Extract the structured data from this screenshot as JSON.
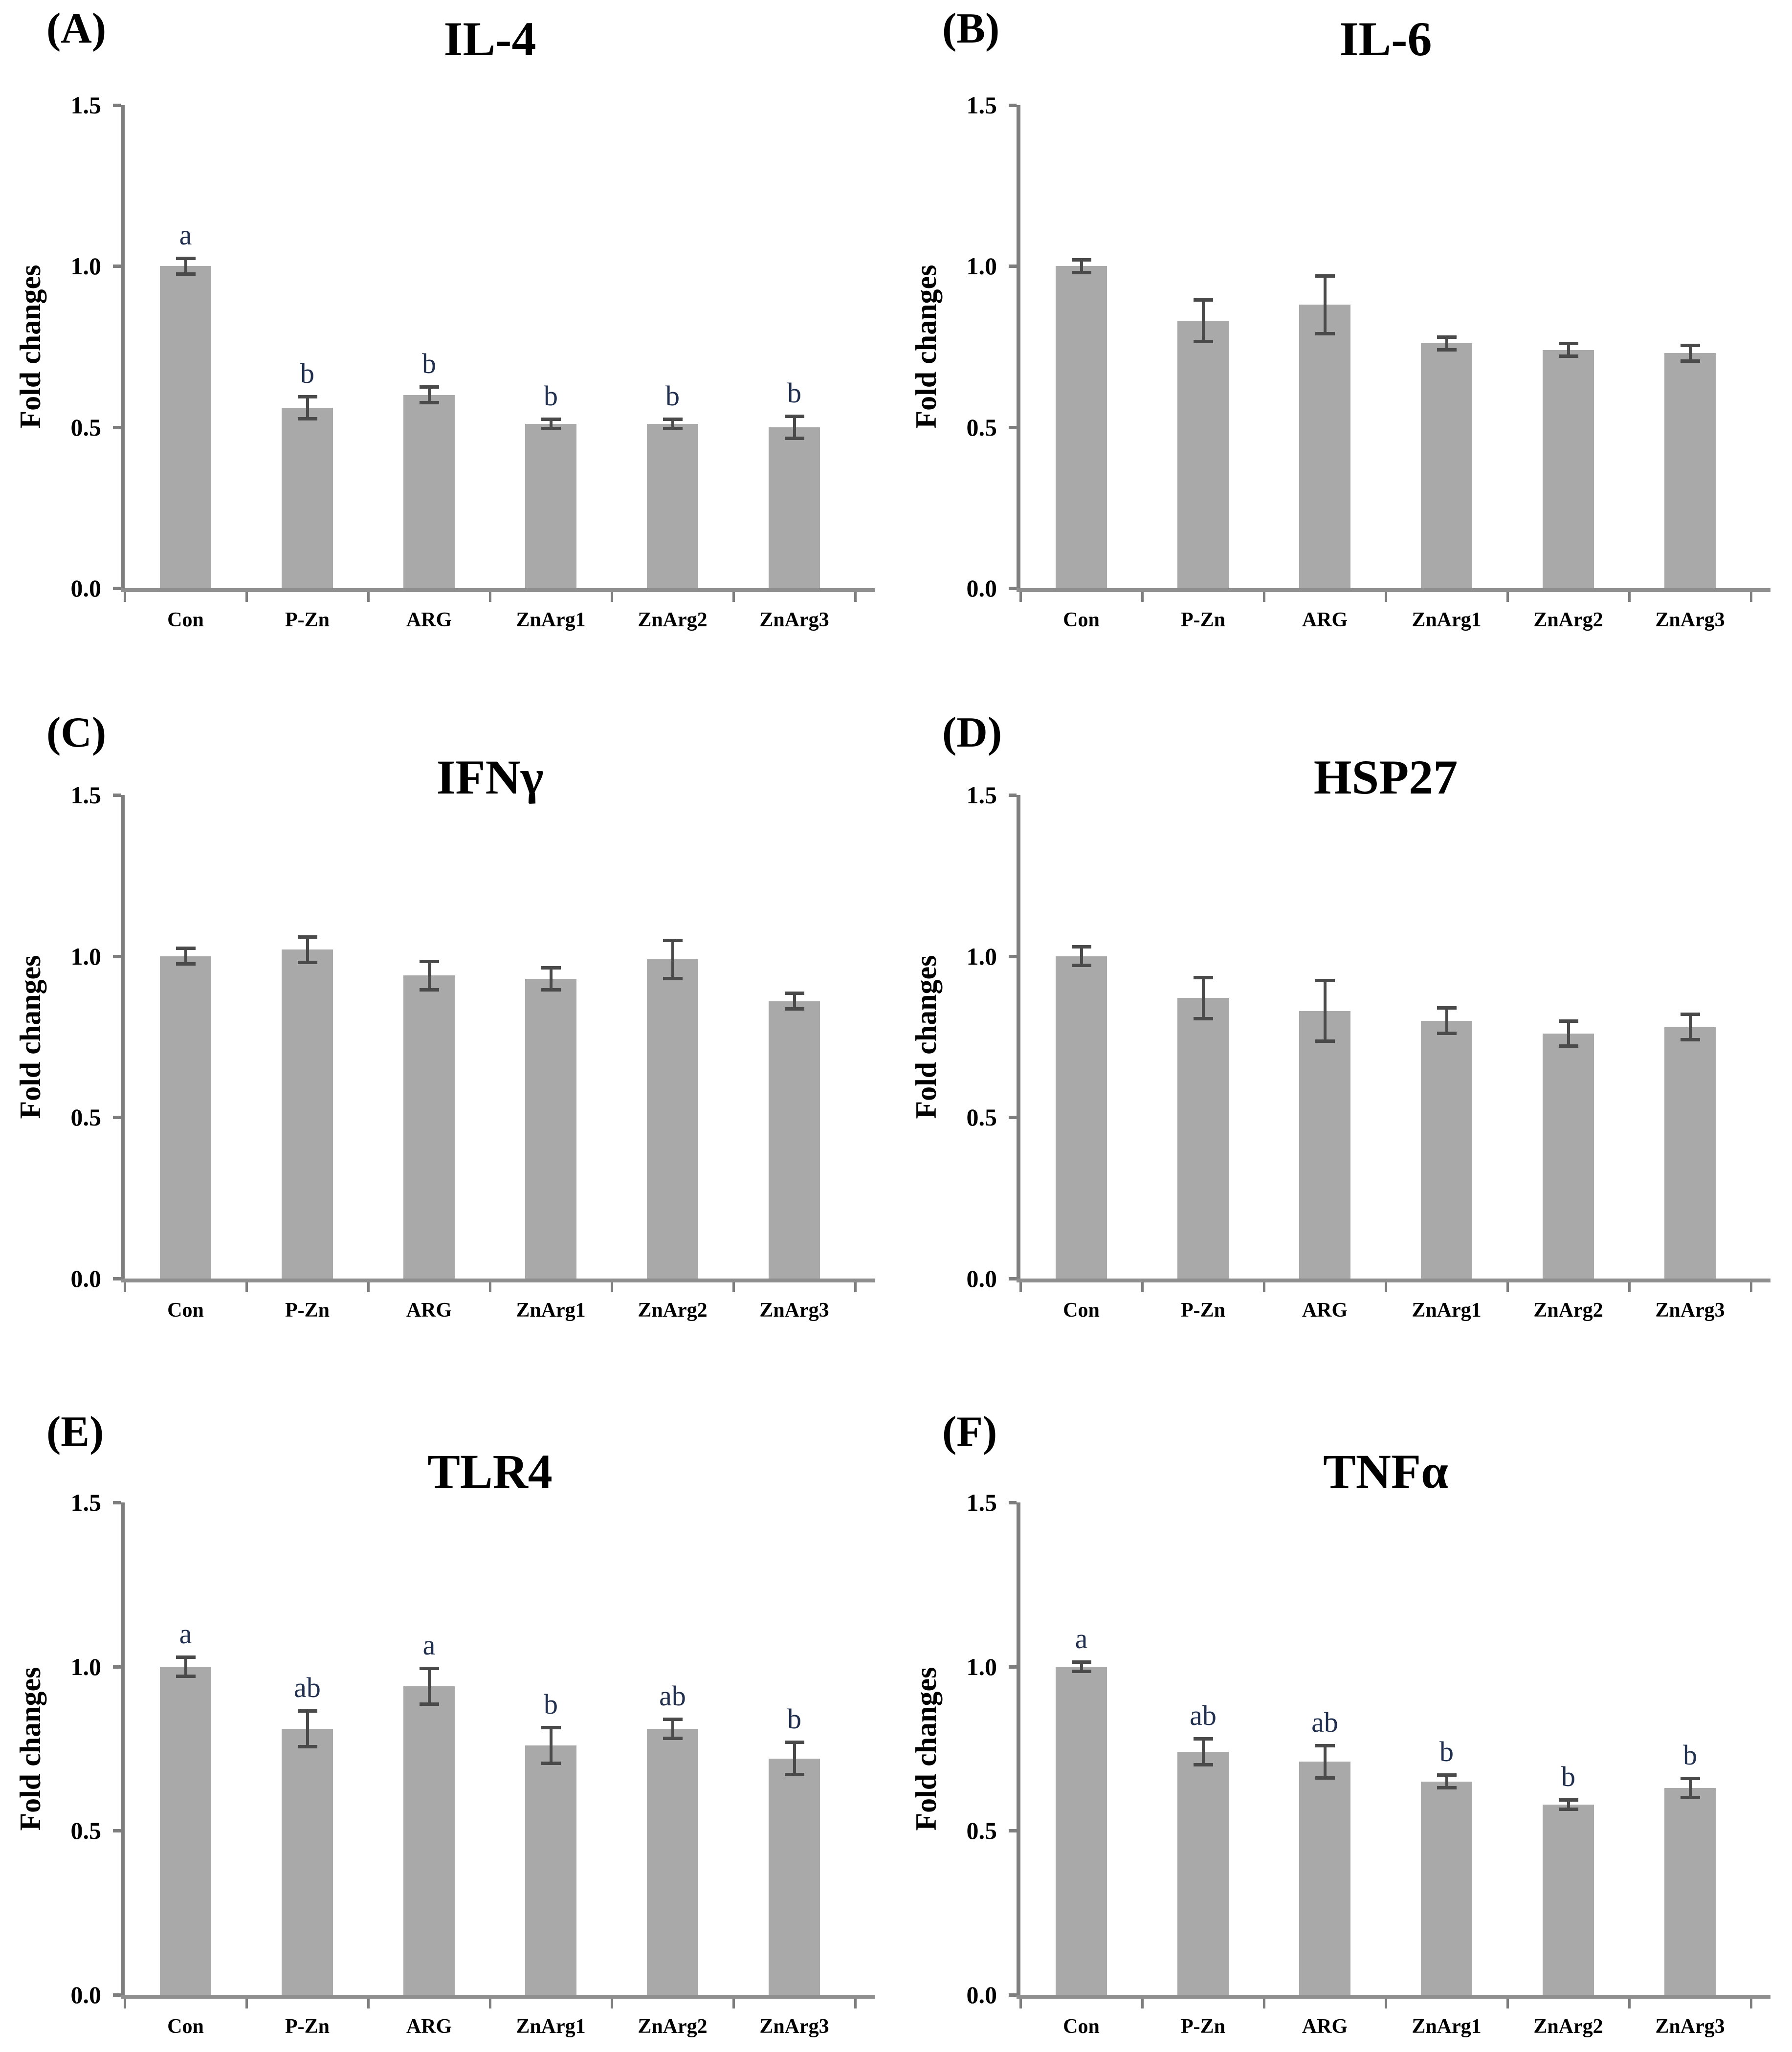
{
  "colors": {
    "bar": "#a9a9a9",
    "axis": "#7e7e7e",
    "baseline": "#8f8f8f",
    "error_bar": "#4a4a4a",
    "sig_letter": "#22304f",
    "text": "#000000"
  },
  "chart_data": [
    {
      "type": "bar",
      "panel_letter": "(A)",
      "title": "IL-4",
      "ylabel": "Fold changes",
      "xlabel": "",
      "ylim": [
        0,
        1.5
      ],
      "ytick_labels": [
        "1.5",
        "1.0",
        "0.5",
        "0.0"
      ],
      "grid": false,
      "categories": [
        "Con",
        "P-Zn",
        "ARG",
        "ZnArg1",
        "ZnArg2",
        "ZnArg3"
      ],
      "values": [
        1.0,
        0.56,
        0.6,
        0.51,
        0.51,
        0.5
      ],
      "errors": [
        0.025,
        0.035,
        0.025,
        0.015,
        0.015,
        0.035
      ],
      "sig_letters": [
        "a",
        "b",
        "b",
        "b",
        "b",
        "b"
      ]
    },
    {
      "type": "bar",
      "panel_letter": "(B)",
      "title": "IL-6",
      "ylabel": "Fold changes",
      "xlabel": "",
      "ylim": [
        0,
        1.5
      ],
      "ytick_labels": [
        "1.5",
        "1.0",
        "0.5",
        "0.0"
      ],
      "grid": false,
      "categories": [
        "Con",
        "P-Zn",
        "ARG",
        "ZnArg1",
        "ZnArg2",
        "ZnArg3"
      ],
      "values": [
        1.0,
        0.83,
        0.88,
        0.76,
        0.74,
        0.73
      ],
      "errors": [
        0.02,
        0.065,
        0.09,
        0.02,
        0.02,
        0.025
      ],
      "sig_letters": [
        "",
        "",
        "",
        "",
        "",
        ""
      ]
    },
    {
      "type": "bar",
      "panel_letter": "(C)",
      "title": "IFNγ",
      "ylabel": "Fold changes",
      "xlabel": "",
      "ylim": [
        0,
        1.5
      ],
      "ytick_labels": [
        "1.5",
        "1.0",
        "0.5",
        "0.0"
      ],
      "grid": false,
      "categories": [
        "Con",
        "P-Zn",
        "ARG",
        "ZnArg1",
        "ZnArg2",
        "ZnArg3"
      ],
      "values": [
        1.0,
        1.02,
        0.94,
        0.93,
        0.99,
        0.86
      ],
      "errors": [
        0.025,
        0.04,
        0.045,
        0.035,
        0.06,
        0.025
      ],
      "sig_letters": [
        "",
        "",
        "",
        "",
        "",
        ""
      ]
    },
    {
      "type": "bar",
      "panel_letter": "(D)",
      "title": "HSP27",
      "ylabel": "Fold changes",
      "xlabel": "",
      "ylim": [
        0,
        1.5
      ],
      "ytick_labels": [
        "1.5",
        "1.0",
        "0.5",
        "0.0"
      ],
      "grid": false,
      "categories": [
        "Con",
        "P-Zn",
        "ARG",
        "ZnArg1",
        "ZnArg2",
        "ZnArg3"
      ],
      "values": [
        1.0,
        0.87,
        0.83,
        0.8,
        0.76,
        0.78
      ],
      "errors": [
        0.03,
        0.065,
        0.095,
        0.04,
        0.04,
        0.04
      ],
      "sig_letters": [
        "",
        "",
        "",
        "",
        "",
        ""
      ]
    },
    {
      "type": "bar",
      "panel_letter": "(E)",
      "title": "TLR4",
      "ylabel": "Fold changes",
      "xlabel": "",
      "ylim": [
        0,
        1.5
      ],
      "ytick_labels": [
        "1.5",
        "1.0",
        "0.5",
        "0.0"
      ],
      "grid": false,
      "categories": [
        "Con",
        "P-Zn",
        "ARG",
        "ZnArg1",
        "ZnArg2",
        "ZnArg3"
      ],
      "values": [
        1.0,
        0.81,
        0.94,
        0.76,
        0.81,
        0.72
      ],
      "errors": [
        0.03,
        0.055,
        0.055,
        0.055,
        0.03,
        0.05
      ],
      "sig_letters": [
        "a",
        "ab",
        "a",
        "b",
        "ab",
        "b"
      ]
    },
    {
      "type": "bar",
      "panel_letter": "(F)",
      "title": "TNFα",
      "ylabel": "Fold changes",
      "xlabel": "",
      "ylim": [
        0,
        1.5
      ],
      "ytick_labels": [
        "1.5",
        "1.0",
        "0.5",
        "0.0"
      ],
      "grid": false,
      "categories": [
        "Con",
        "P-Zn",
        "ARG",
        "ZnArg1",
        "ZnArg2",
        "ZnArg3"
      ],
      "values": [
        1.0,
        0.74,
        0.71,
        0.65,
        0.58,
        0.63
      ],
      "errors": [
        0.015,
        0.04,
        0.05,
        0.02,
        0.015,
        0.03
      ],
      "sig_letters": [
        "a",
        "ab",
        "ab",
        "b",
        "b",
        "b"
      ]
    }
  ]
}
